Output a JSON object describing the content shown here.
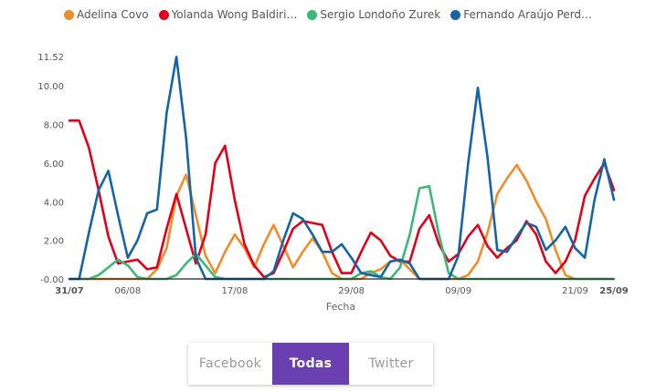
{
  "legend": [
    {
      "label": "Adelina Covo",
      "color": "#f28c28"
    },
    {
      "label": "Yolanda Wong Baldiri…",
      "color": "#e3001b"
    },
    {
      "label": "Sergio Londoño Zurek",
      "color": "#3cb878"
    },
    {
      "label": "Fernando Araújo Perd…",
      "color": "#1565a6"
    }
  ],
  "tabs": [
    {
      "label": "Facebook",
      "active": false
    },
    {
      "label": "Todas",
      "active": true
    },
    {
      "label": "Twitter",
      "active": false
    }
  ],
  "chart_data": {
    "type": "line",
    "xlabel": "Fecha",
    "ylim": [
      0,
      11.52
    ],
    "y_ticks": [
      "-0.00",
      "2.00",
      "4.00",
      "6.00",
      "8.00",
      "10.00",
      "11.52"
    ],
    "x_tick_labels": [
      {
        "i": 0,
        "label": "31/07"
      },
      {
        "i": 6,
        "label": "06/08"
      },
      {
        "i": 17,
        "label": "17/08"
      },
      {
        "i": 29,
        "label": "29/08"
      },
      {
        "i": 40,
        "label": "09/09"
      },
      {
        "i": 52,
        "label": "21/09"
      },
      {
        "i": 56,
        "label": "25/09"
      }
    ],
    "x": [
      "31/07",
      "01/08",
      "02/08",
      "03/08",
      "04/08",
      "05/08",
      "06/08",
      "07/08",
      "08/08",
      "09/08",
      "10/08",
      "11/08",
      "12/08",
      "13/08",
      "14/08",
      "15/08",
      "16/08",
      "17/08",
      "18/08",
      "19/08",
      "20/08",
      "21/08",
      "22/08",
      "23/08",
      "24/08",
      "25/08",
      "26/08",
      "27/08",
      "28/08",
      "29/08",
      "30/08",
      "31/08",
      "01/09",
      "02/09",
      "03/09",
      "04/09",
      "05/09",
      "06/09",
      "07/09",
      "08/09",
      "09/09",
      "10/09",
      "11/09",
      "12/09",
      "13/09",
      "14/09",
      "15/09",
      "16/09",
      "17/09",
      "18/09",
      "19/09",
      "20/09",
      "21/09",
      "22/09",
      "23/09",
      "24/09",
      "25/09"
    ],
    "series": [
      {
        "name": "Adelina Covo",
        "color": "#f28c28",
        "values": [
          0,
          0,
          0,
          0,
          0,
          0,
          0,
          0,
          0,
          0.5,
          1.6,
          4.3,
          5.4,
          3.3,
          1.2,
          0.3,
          1.4,
          2.3,
          1.6,
          0.6,
          1.8,
          2.8,
          1.7,
          0.6,
          1.4,
          2.1,
          1.4,
          0.3,
          0,
          0,
          0,
          0.3,
          0.5,
          0.9,
          1.0,
          0.5,
          0,
          0,
          0,
          0,
          0,
          0.2,
          0.9,
          2.4,
          4.4,
          5.2,
          5.9,
          5.1,
          4.0,
          3.1,
          1.5,
          0.2,
          0,
          0,
          0,
          0,
          0
        ]
      },
      {
        "name": "Yolanda Wong Baldiri…",
        "color": "#e3001b",
        "values": [
          8.2,
          8.2,
          6.8,
          4.6,
          2.2,
          0.8,
          0.9,
          1.0,
          0.5,
          0.6,
          2.6,
          4.4,
          2.6,
          0.8,
          2.3,
          6.0,
          6.9,
          4.1,
          1.8,
          0.7,
          0.1,
          0.3,
          1.4,
          2.6,
          3.0,
          2.9,
          2.8,
          1.4,
          0.3,
          0.3,
          1.4,
          2.4,
          2.0,
          1.2,
          0.9,
          0.9,
          2.6,
          3.3,
          1.8,
          0.9,
          1.3,
          2.2,
          2.8,
          1.7,
          1.1,
          1.6,
          2.0,
          3.0,
          2.3,
          0.9,
          0.3,
          0.9,
          2.0,
          4.3,
          5.2,
          6.0,
          4.6
        ]
      },
      {
        "name": "Sergio Londoño Zurek",
        "color": "#3cb878",
        "values": [
          0,
          0,
          0,
          0.2,
          0.6,
          1.0,
          0.7,
          0.1,
          0,
          0,
          0,
          0.2,
          0.8,
          1.3,
          0.7,
          0.1,
          0,
          0,
          0,
          0,
          0,
          0,
          0,
          0,
          0,
          0,
          0,
          0,
          0,
          0,
          0.3,
          0.4,
          0.1,
          0,
          0.6,
          2.3,
          4.7,
          4.8,
          2.3,
          0.3,
          0,
          0,
          0,
          0,
          0,
          0,
          0,
          0,
          0,
          0,
          0,
          0,
          0,
          0,
          0,
          0,
          0
        ]
      },
      {
        "name": "Fernando Araújo Perd…",
        "color": "#1565a6",
        "values": [
          0,
          0,
          2.4,
          4.6,
          5.6,
          3.3,
          1.1,
          2.0,
          3.4,
          3.6,
          8.6,
          11.5,
          7.3,
          1.1,
          0,
          0,
          0,
          0,
          0,
          0,
          0,
          0.4,
          2.0,
          3.4,
          3.1,
          2.3,
          1.4,
          1.4,
          1.8,
          1.1,
          0.3,
          0.2,
          0.1,
          0.9,
          1.0,
          0.8,
          0,
          0,
          0,
          0,
          1.2,
          6.0,
          9.9,
          6.3,
          1.5,
          1.4,
          2.2,
          2.9,
          2.7,
          1.5,
          2.0,
          2.7,
          1.6,
          1.1,
          4.1,
          6.2,
          4.1
        ]
      }
    ]
  }
}
